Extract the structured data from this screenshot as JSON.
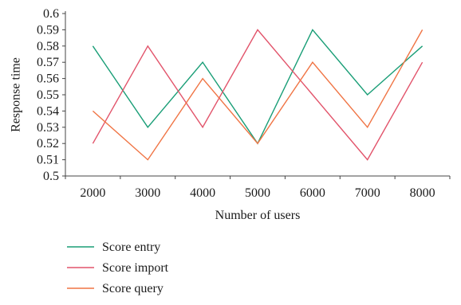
{
  "chart_data": {
    "type": "line",
    "xlabel": "Number of users",
    "ylabel": "Response time",
    "categories": [
      "2000",
      "3000",
      "4000",
      "5000",
      "6000",
      "7000",
      "8000"
    ],
    "ylim": [
      0.5,
      0.6
    ],
    "yticks": [
      "0.5",
      "0.51",
      "0.52",
      "0.53",
      "0.54",
      "0.55",
      "0.56",
      "0.57",
      "0.58",
      "0.59",
      "0.6"
    ],
    "grid": false,
    "legend_position": "bottom-left",
    "series": [
      {
        "name": "Score entry",
        "color": "#1a9e77",
        "values": [
          0.58,
          0.53,
          0.57,
          0.52,
          0.59,
          0.55,
          0.58
        ]
      },
      {
        "name": "Score import",
        "color": "#e2546b",
        "values": [
          0.52,
          0.58,
          0.53,
          0.59,
          0.55,
          0.51,
          0.57
        ]
      },
      {
        "name": "Score query",
        "color": "#f07444",
        "values": [
          0.54,
          0.51,
          0.56,
          0.52,
          0.57,
          0.53,
          0.59
        ]
      }
    ]
  }
}
